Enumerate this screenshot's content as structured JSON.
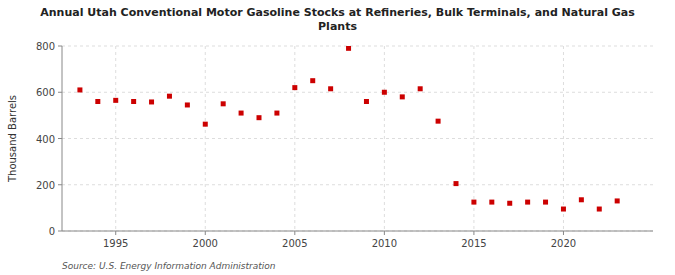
{
  "chart_data": {
    "type": "scatter",
    "title": "Annual Utah Conventional Motor Gasoline Stocks at Refineries, Bulk Terminals, and Natural Gas\nPlants",
    "ylabel": "Thousand Barrels",
    "annotations": [
      "Source: U.S. Energy Information Administration"
    ],
    "x": [
      1993,
      1994,
      1995,
      1996,
      1997,
      1998,
      1999,
      2000,
      2001,
      2002,
      2003,
      2004,
      2005,
      2006,
      2007,
      2008,
      2009,
      2010,
      2011,
      2012,
      2013,
      2014,
      2015,
      2016,
      2017,
      2018,
      2019,
      2020,
      2021,
      2022,
      2023
    ],
    "values": [
      610,
      560,
      565,
      560,
      558,
      583,
      545,
      462,
      550,
      510,
      490,
      510,
      620,
      650,
      615,
      790,
      560,
      600,
      580,
      615,
      475,
      205,
      125,
      125,
      120,
      125,
      125,
      95,
      135,
      95,
      130
    ],
    "color": "#cc0000",
    "marker": "square",
    "xlim": [
      1992,
      2025
    ],
    "ylim": [
      0,
      800
    ],
    "xticks": [
      1995,
      2000,
      2005,
      2010,
      2015,
      2020
    ],
    "yticks": [
      0,
      200,
      400,
      600,
      800
    ],
    "grid": true
  }
}
